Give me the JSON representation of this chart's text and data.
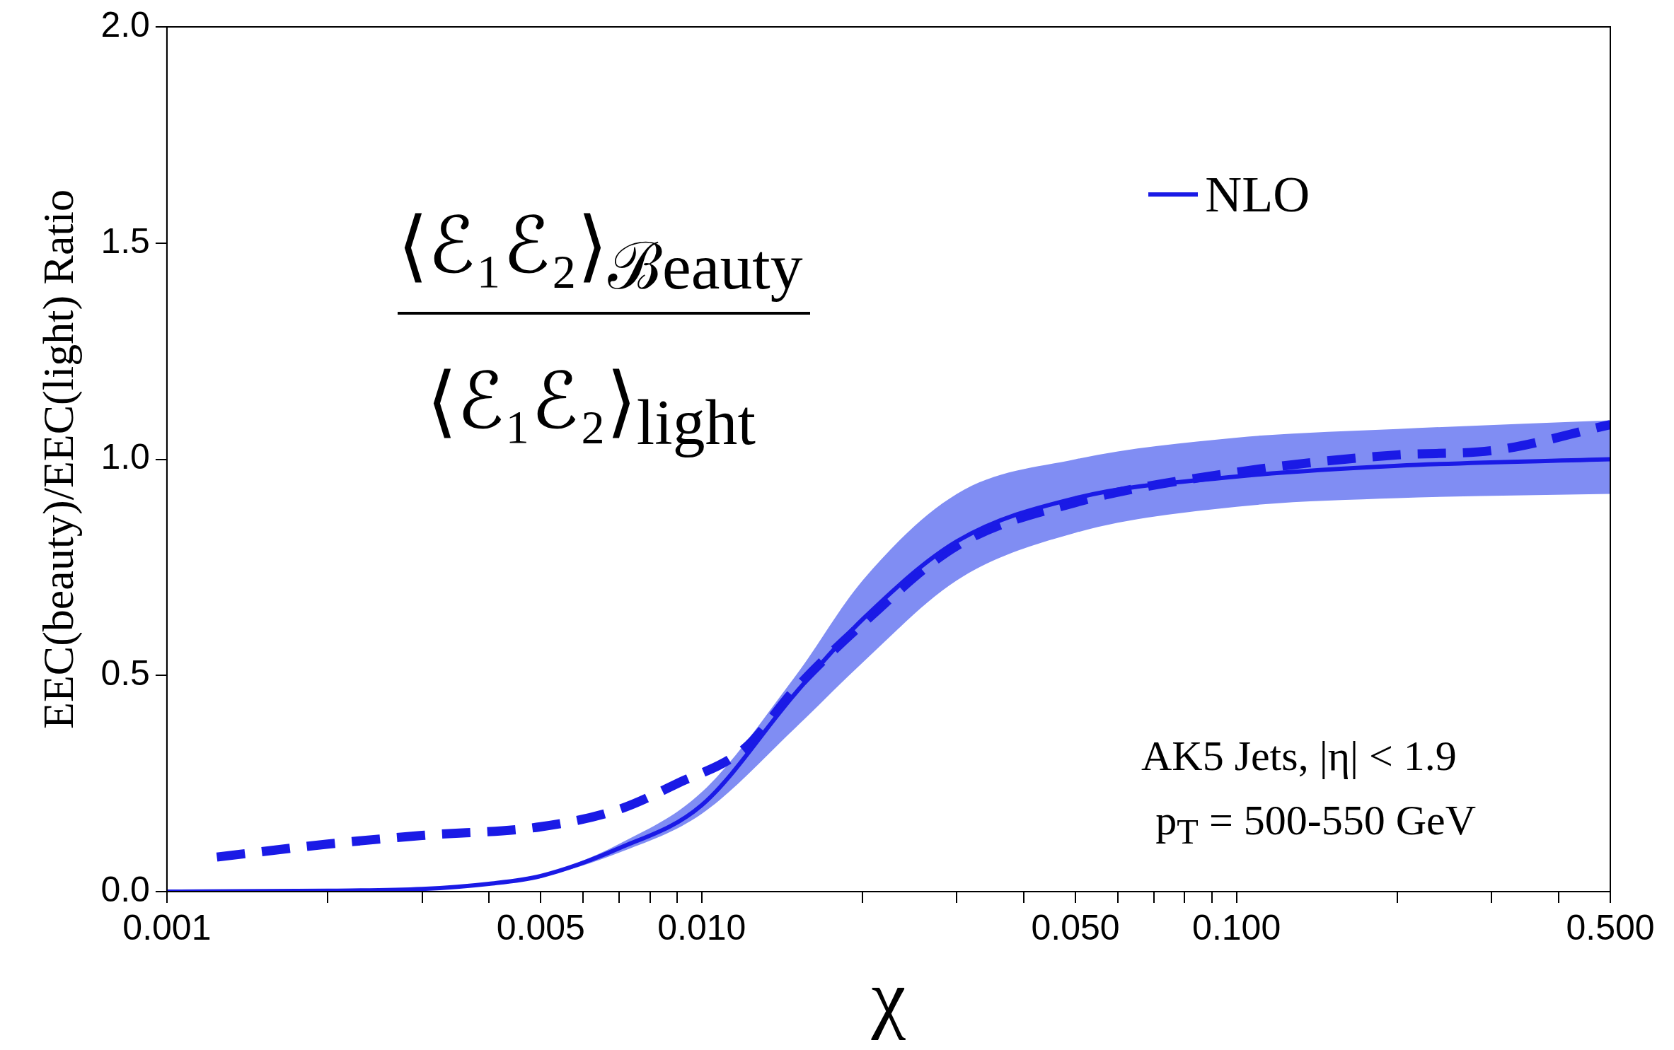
{
  "chart_data": {
    "type": "line",
    "xlabel": "χ",
    "ylabel": "EEC(beauty)/EEC(light) Ratio",
    "log": "x",
    "grid": false,
    "legend": "top right",
    "marker": "none",
    "annotations": [
      "⟨ℰ₁ℰ₂⟩$_{ℬeauty}$",
      "⟨ℰ₁ℰ₂⟩$_{light}$",
      "AK5 Jets, |η| < 1.9",
      "p$_{T}$ = 500-550 GeV"
    ],
    "xlim": [
      0.001,
      0.5
    ],
    "ylim": [
      0,
      2
    ],
    "xticks": [
      {
        "value": 0.001,
        "label": "0.001"
      },
      {
        "value": 0.002,
        "label": null
      },
      {
        "value": 0.003,
        "label": null
      },
      {
        "value": 0.004,
        "label": null
      },
      {
        "value": 0.005,
        "label": "0.005"
      },
      {
        "value": 0.006,
        "label": null
      },
      {
        "value": 0.007,
        "label": null
      },
      {
        "value": 0.008,
        "label": null
      },
      {
        "value": 0.009,
        "label": null
      },
      {
        "value": 0.01,
        "label": "0.010"
      },
      {
        "value": 0.02,
        "label": null
      },
      {
        "value": 0.03,
        "label": null
      },
      {
        "value": 0.04,
        "label": null
      },
      {
        "value": 0.05,
        "label": "0.050"
      },
      {
        "value": 0.06,
        "label": null
      },
      {
        "value": 0.07,
        "label": null
      },
      {
        "value": 0.08,
        "label": null
      },
      {
        "value": 0.09,
        "label": null
      },
      {
        "value": 0.1,
        "label": "0.100"
      },
      {
        "value": 0.2,
        "label": null
      },
      {
        "value": 0.3,
        "label": null
      },
      {
        "value": 0.4,
        "label": null
      },
      {
        "value": 0.5,
        "label": "0.500"
      }
    ],
    "yticks": [
      {
        "value": 0,
        "label": "0.0"
      },
      {
        "value": 0.5,
        "label": "0.5"
      },
      {
        "value": 1,
        "label": "1.0"
      },
      {
        "value": 1.5,
        "label": "1.5"
      },
      {
        "value": 2,
        "label": "2.0"
      }
    ],
    "series": [
      {
        "name": "NLO",
        "color": "#1a1ae6",
        "line_style": "solid",
        "x": [
          0.001,
          0.002,
          0.003,
          0.004,
          0.005,
          0.007,
          0.01,
          0.015,
          0.02,
          0.03,
          0.05,
          0.1,
          0.2,
          0.5
        ],
        "values": [
          0,
          0.002,
          0.006,
          0.018,
          0.036,
          0.1,
          0.2,
          0.46,
          0.63,
          0.81,
          0.91,
          0.96,
          0.985,
          1.0
        ],
        "lower": [
          0,
          0.002,
          0.006,
          0.017,
          0.034,
          0.09,
          0.18,
          0.38,
          0.53,
          0.72,
          0.83,
          0.89,
          0.91,
          0.92
        ],
        "upper": [
          0,
          0.002,
          0.006,
          0.019,
          0.038,
          0.11,
          0.23,
          0.5,
          0.72,
          0.92,
          1.0,
          1.05,
          1.07,
          1.09
        ]
      },
      {
        "color": "#1a1ae6",
        "line_style": "dashed",
        "x": [
          0.00124,
          0.002,
          0.003,
          0.005,
          0.007,
          0.009,
          0.012,
          0.015,
          0.02,
          0.03,
          0.05,
          0.1,
          0.2,
          0.3,
          0.5
        ],
        "values": [
          0.08,
          0.11,
          0.13,
          0.15,
          0.19,
          0.25,
          0.33,
          0.47,
          0.62,
          0.8,
          0.9,
          0.97,
          1.01,
          1.02,
          1.08
        ]
      }
    ]
  }
}
